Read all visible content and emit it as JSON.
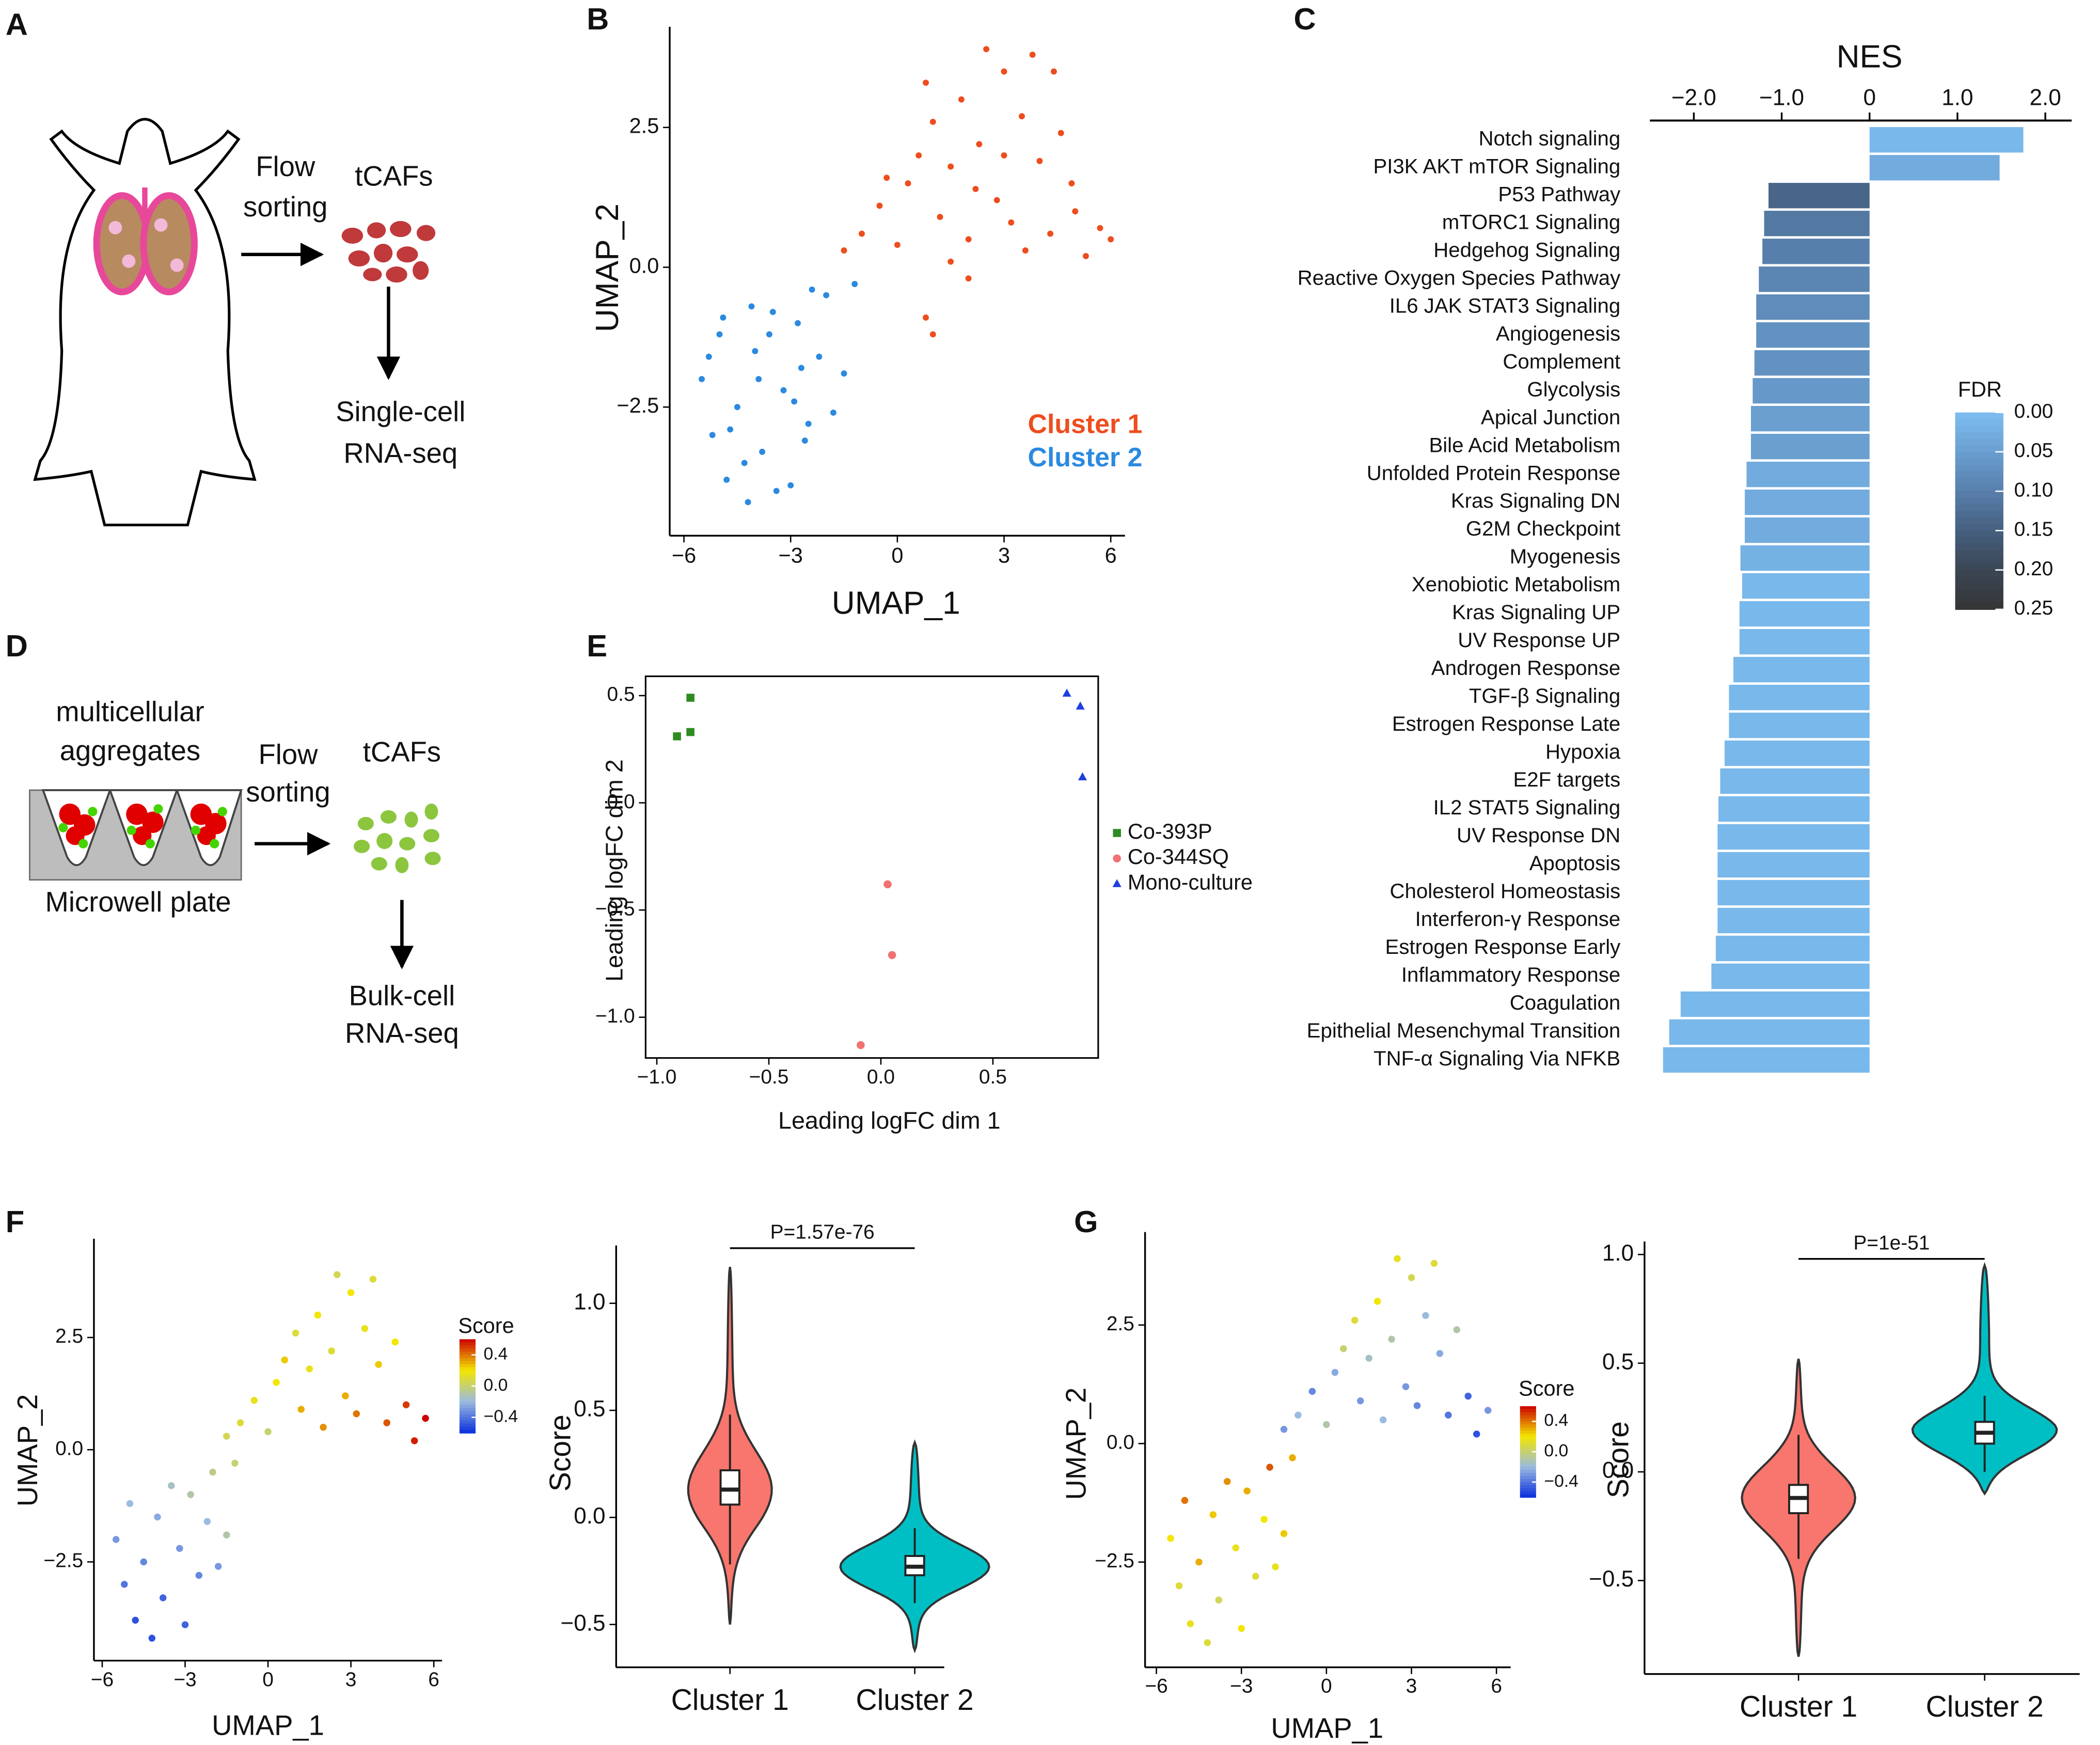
{
  "panel_labels": [
    "A",
    "B",
    "C",
    "D",
    "E",
    "F",
    "G"
  ],
  "diagram_a": {
    "arrow_label": [
      "Flow",
      "sorting"
    ],
    "cells": "tCAFs",
    "assay": [
      "Single-cell",
      "RNA-seq"
    ]
  },
  "diagram_d": {
    "aggregates": [
      "multicellular",
      "aggregates"
    ],
    "arrow_label": [
      "Flow",
      "sorting"
    ],
    "cells": "tCAFs",
    "plate": "Microwell plate",
    "assay": [
      "Bulk-cell",
      "RNA-seq"
    ]
  },
  "chart_data": [
    {
      "type": "scatter",
      "xlabel": "UMAP_1",
      "ylabel": "UMAP_2",
      "xlim": [
        -6.4,
        6.4
      ],
      "ylim": [
        -4.8,
        4.3
      ],
      "xticks": [
        {
          "value": -6,
          "label": "−6"
        },
        {
          "value": -3,
          "label": "−3"
        },
        0,
        3,
        6
      ],
      "yticks": [
        {
          "value": -2.5,
          "label": "−2.5"
        },
        {
          "value": 0,
          "label": "0.0"
        },
        2.5
      ],
      "series": [
        {
          "name": "Cluster 1",
          "color": "#ee4d1e",
          "x": [
            -1.5,
            -1.0,
            -0.5,
            0.0,
            0.3,
            0.6,
            1.0,
            1.2,
            1.5,
            1.8,
            2.0,
            2.3,
            2.5,
            2.8,
            3.0,
            3.2,
            3.5,
            3.8,
            4.0,
            4.3,
            4.6,
            5.0,
            5.3,
            5.7,
            6.0,
            -0.3,
            0.8,
            1.5,
            2.2,
            3.0,
            3.6,
            4.4,
            4.9,
            2.0,
            0.8,
            1.0
          ],
          "values": [
            0.3,
            0.6,
            1.1,
            0.4,
            1.5,
            2.0,
            2.6,
            0.9,
            1.8,
            3.0,
            0.5,
            2.2,
            3.9,
            1.2,
            3.5,
            0.8,
            2.7,
            3.8,
            1.9,
            0.6,
            2.4,
            1.0,
            0.2,
            0.7,
            0.5,
            1.6,
            3.3,
            0.1,
            1.4,
            2.0,
            0.3,
            3.5,
            1.5,
            -0.2,
            -0.9,
            -1.2
          ]
        },
        {
          "name": "Cluster 2",
          "color": "#2a8ae0",
          "x": [
            -5.5,
            -5.2,
            -5.0,
            -4.8,
            -4.5,
            -4.2,
            -4.0,
            -3.8,
            -3.5,
            -3.2,
            -3.0,
            -2.8,
            -2.5,
            -2.2,
            -2.0,
            -1.8,
            -1.5,
            -1.2,
            -5.3,
            -4.7,
            -4.3,
            -3.9,
            -3.4,
            -2.9,
            -2.6,
            -4.9,
            -4.1,
            -3.6,
            -2.4,
            -2.7
          ],
          "values": [
            -2.0,
            -3.0,
            -1.2,
            -3.8,
            -2.5,
            -4.2,
            -1.5,
            -3.3,
            -0.8,
            -2.2,
            -3.9,
            -1.0,
            -2.8,
            -1.6,
            -0.5,
            -2.6,
            -1.9,
            -0.3,
            -1.6,
            -2.9,
            -3.5,
            -2.0,
            -4.0,
            -2.4,
            -3.1,
            -0.9,
            -0.7,
            -1.2,
            -0.4,
            -1.8
          ]
        }
      ]
    },
    {
      "type": "barh",
      "xlabel": "NES",
      "xlim": [
        -2.5,
        2.3
      ],
      "xticks": [
        {
          "value": -2,
          "label": "−2.0"
        },
        {
          "value": -1,
          "label": "−1.0"
        },
        0,
        {
          "value": 1,
          "label": "1.0"
        },
        {
          "value": 2,
          "label": "2.0"
        }
      ],
      "categories": [
        "Notch signaling",
        "PI3K AKT mTOR Signaling",
        "P53 Pathway",
        "mTORC1 Signaling",
        "Hedgehog Signaling",
        "Reactive Oxygen Species Pathway",
        "IL6 JAK STAT3 Signaling",
        "Angiogenesis",
        "Complement",
        "Glycolysis",
        "Apical Junction",
        "Bile Acid Metabolism",
        "Unfolded Protein Response",
        "Kras Signaling DN",
        "G2M Checkpoint",
        "Myogenesis",
        "Xenobiotic Metabolism",
        "Kras Signaling UP",
        "UV Response UP",
        "Androgen Response",
        "TGF-β Signaling",
        "Estrogen Response Late",
        "Hypoxia",
        "E2F targets",
        "IL2 STAT5 Signaling",
        "UV Response DN",
        "Apoptosis",
        "Cholesterol Homeostasis",
        "Interferon-γ Response",
        "Estrogen Response Early",
        "Inflammatory Response",
        "Coagulation",
        "Epithelial Mesenchymal Transition",
        "TNF-α Signaling Via NFKB"
      ],
      "values": [
        1.75,
        1.48,
        -1.15,
        -1.2,
        -1.22,
        -1.26,
        -1.29,
        -1.29,
        -1.31,
        -1.33,
        -1.35,
        -1.35,
        -1.4,
        -1.42,
        -1.42,
        -1.47,
        -1.45,
        -1.48,
        -1.48,
        -1.55,
        -1.6,
        -1.6,
        -1.65,
        -1.7,
        -1.72,
        -1.73,
        -1.73,
        -1.73,
        -1.73,
        -1.75,
        -1.8,
        -2.15,
        -2.28,
        -2.35
      ],
      "fdr": [
        0.01,
        0.03,
        0.14,
        0.11,
        0.1,
        0.09,
        0.08,
        0.07,
        0.07,
        0.06,
        0.05,
        0.05,
        0.03,
        0.03,
        0.03,
        0.02,
        0.01,
        0.01,
        0.01,
        0.01,
        0.01,
        0.01,
        0.01,
        0.01,
        0.01,
        0.01,
        0.01,
        0.01,
        0.01,
        0.01,
        0.01,
        0.01,
        0.01,
        0.01
      ],
      "legend": {
        "title": "FDR",
        "ticks": [
          {
            "value": 0,
            "label": "0.00"
          },
          {
            "value": 0.05,
            "label": "0.05"
          },
          {
            "value": 0.1,
            "label": "0.10"
          },
          {
            "value": 0.15,
            "label": "0.15"
          },
          {
            "value": 0.2,
            "label": "0.20"
          },
          {
            "value": 0.25,
            "label": "0.25"
          }
        ],
        "colors": [
          "#7dbef2",
          "#6a9fd0",
          "#577fab",
          "#455f7f",
          "#3a4653",
          "#353535"
        ]
      }
    },
    {
      "type": "scatter",
      "xlabel": "Leading logFC dim 1",
      "ylabel": "Leading logFC dim 2",
      "xlim": [
        -1.05,
        0.97
      ],
      "ylim": [
        -1.19,
        0.59
      ],
      "xticks": [
        {
          "value": -1,
          "label": "−1.0"
        },
        {
          "value": -0.5,
          "label": "−0.5"
        },
        {
          "value": 0,
          "label": "0.0"
        },
        0.5
      ],
      "yticks": [
        {
          "value": -1,
          "label": "−1.0"
        },
        {
          "value": -0.5,
          "label": "−0.5"
        },
        {
          "value": 0,
          "label": "0.0"
        },
        0.5
      ],
      "series": [
        {
          "name": "Co-393P",
          "color": "#2e8b22",
          "marker": "square",
          "x": [
            -0.85,
            -0.85,
            -0.91
          ],
          "values": [
            0.49,
            0.33,
            0.31
          ]
        },
        {
          "name": "Co-344SQ",
          "color": "#f07272",
          "marker": "circle",
          "x": [
            0.03,
            0.05,
            -0.09
          ],
          "values": [
            -0.38,
            -0.71,
            -1.13
          ]
        },
        {
          "name": "Mono-culture",
          "color": "#1f3fe0",
          "marker": "triangle",
          "x": [
            0.83,
            0.89,
            0.9
          ],
          "values": [
            0.51,
            0.45,
            0.12
          ]
        }
      ]
    },
    {
      "type": "scatter",
      "xlabel": "UMAP_1",
      "ylabel": "UMAP_2",
      "xlim": [
        -6.3,
        6.3
      ],
      "ylim": [
        -4.7,
        4.7
      ],
      "xticks": [
        {
          "value": -6,
          "label": "−6"
        },
        {
          "value": -3,
          "label": "−3"
        },
        0,
        3,
        6
      ],
      "yticks": [
        {
          "value": -2.5,
          "label": "−2.5"
        },
        {
          "value": 0,
          "label": "0.0"
        },
        2.5
      ],
      "colorbar_title": "Score",
      "clim": [
        -0.6,
        0.6
      ],
      "colors": [
        "#0a2fdc",
        "#9bbbe0",
        "#f3e600",
        "#cc0000"
      ],
      "cticks": [
        {
          "value": 0.4,
          "label": "0.4"
        },
        {
          "value": 0,
          "label": "0.0"
        },
        {
          "value": -0.4,
          "label": "−0.4"
        }
      ],
      "series": [
        {
          "x": [
            -1.5,
            -1.0,
            -0.5,
            0.0,
            0.3,
            0.6,
            1.0,
            1.2,
            1.5,
            1.8,
            2.0,
            2.3,
            2.5,
            2.8,
            3.0,
            3.2,
            3.5,
            3.8,
            4.0,
            4.3,
            4.6,
            5.0,
            5.3,
            5.7,
            -5.5,
            -5.2,
            -5.0,
            -4.8,
            -4.5,
            -4.2,
            -4.0,
            -3.8,
            -3.5,
            -3.2,
            -3.0,
            -2.8,
            -2.5,
            -2.2,
            -2.0,
            -1.8,
            -1.5,
            -1.2
          ],
          "values": [
            0.3,
            0.6,
            1.1,
            0.4,
            1.5,
            2.0,
            2.6,
            0.9,
            1.8,
            3.0,
            0.5,
            2.2,
            3.9,
            1.2,
            3.5,
            0.8,
            2.7,
            3.8,
            1.9,
            0.6,
            2.4,
            1.0,
            0.2,
            0.7,
            -2.0,
            -3.0,
            -1.2,
            -3.8,
            -2.5,
            -4.2,
            -1.5,
            -3.3,
            -0.8,
            -2.2,
            -3.9,
            -1.0,
            -2.8,
            -1.6,
            -0.5,
            -2.6,
            -1.9,
            -0.3
          ],
          "scores": [
            0.05,
            0.1,
            0.15,
            0.0,
            0.2,
            0.25,
            0.1,
            0.3,
            0.15,
            0.2,
            0.35,
            0.1,
            0.05,
            0.3,
            0.2,
            0.4,
            0.15,
            0.1,
            0.25,
            0.45,
            0.2,
            0.5,
            0.55,
            0.6,
            -0.3,
            -0.4,
            -0.2,
            -0.5,
            -0.35,
            -0.5,
            -0.25,
            -0.45,
            -0.15,
            -0.3,
            -0.45,
            -0.1,
            -0.35,
            -0.2,
            -0.05,
            -0.3,
            -0.1,
            0.0
          ]
        }
      ]
    },
    {
      "type": "violin",
      "ylabel": "Score",
      "annotation": "P=1.57e-76",
      "ylim": [
        -0.7,
        1.27
      ],
      "yticks": [
        {
          "value": -0.5,
          "label": "−0.5"
        },
        {
          "value": 0,
          "label": "0.0"
        },
        0.5,
        {
          "value": 1,
          "label": "1.0"
        }
      ],
      "categories": [
        "Cluster 1",
        "Cluster 2"
      ],
      "violins": [
        {
          "color": "#f8766d",
          "min": -0.5,
          "q1": 0.06,
          "median": 0.13,
          "q3": 0.22,
          "max": 1.17,
          "whiskers": [
            -0.22,
            0.48
          ]
        },
        {
          "color": "#00bfc4",
          "min": -0.62,
          "q1": -0.27,
          "median": -0.23,
          "q3": -0.18,
          "max": 0.35,
          "whiskers": [
            -0.4,
            -0.05
          ]
        }
      ]
    },
    {
      "type": "scatter",
      "xlabel": "UMAP_1",
      "ylabel": "UMAP_2",
      "xlim": [
        -6.4,
        6.5
      ],
      "ylim": [
        -4.72,
        4.46
      ],
      "xticks": [
        {
          "value": -6,
          "label": "−6"
        },
        {
          "value": -3,
          "label": "−3"
        },
        0,
        3,
        6
      ],
      "yticks": [
        {
          "value": -2.5,
          "label": "−2.5"
        },
        {
          "value": 0,
          "label": "0.0"
        },
        2.5
      ],
      "colorbar_title": "Score",
      "clim": [
        -0.6,
        0.6
      ],
      "colors": [
        "#0a2fdc",
        "#9bbbe0",
        "#f3e600",
        "#cc0000"
      ],
      "cticks": [
        {
          "value": 0.4,
          "label": "0.4"
        },
        {
          "value": 0,
          "label": "0.0"
        },
        {
          "value": -0.4,
          "label": "−0.4"
        }
      ],
      "series": [
        {
          "x": [
            -1.5,
            -1.0,
            -0.5,
            0.0,
            0.3,
            0.6,
            1.0,
            1.2,
            1.5,
            1.8,
            2.0,
            2.3,
            2.5,
            2.8,
            3.0,
            3.2,
            3.5,
            3.8,
            4.0,
            4.3,
            4.6,
            5.0,
            5.3,
            5.7,
            -5.5,
            -5.2,
            -5.0,
            -4.8,
            -4.5,
            -4.2,
            -4.0,
            -3.8,
            -3.5,
            -3.2,
            -3.0,
            -2.8,
            -2.5,
            -2.2,
            -2.0,
            -1.8,
            -1.5,
            -1.2
          ],
          "values": [
            0.3,
            0.6,
            1.1,
            0.4,
            1.5,
            2.0,
            2.6,
            0.9,
            1.8,
            3.0,
            0.5,
            2.2,
            3.9,
            1.2,
            3.5,
            0.8,
            2.7,
            3.8,
            1.9,
            0.6,
            2.4,
            1.0,
            0.2,
            0.7,
            -2.0,
            -3.0,
            -1.2,
            -3.8,
            -2.5,
            -4.2,
            -1.5,
            -3.3,
            -0.8,
            -2.2,
            -3.9,
            -1.0,
            -2.8,
            -1.6,
            -0.5,
            -2.6,
            -1.9,
            -0.3
          ],
          "scores": [
            -0.3,
            -0.2,
            -0.35,
            -0.1,
            -0.25,
            0.0,
            0.1,
            -0.3,
            -0.15,
            0.2,
            -0.2,
            -0.1,
            0.15,
            -0.3,
            0.05,
            -0.35,
            -0.2,
            0.1,
            -0.25,
            -0.4,
            -0.1,
            -0.45,
            -0.5,
            -0.3,
            0.2,
            0.1,
            0.4,
            0.15,
            0.3,
            0.1,
            0.25,
            0.05,
            0.35,
            0.15,
            0.2,
            0.3,
            0.1,
            0.2,
            0.45,
            0.15,
            0.25,
            0.3
          ]
        }
      ]
    },
    {
      "type": "violin",
      "ylabel": "Score",
      "annotation": "P=1e-51",
      "ylim": [
        -0.93,
        1.06
      ],
      "yticks": [
        {
          "value": -0.5,
          "label": "−0.5"
        },
        {
          "value": 0,
          "label": "0.0"
        },
        0.5,
        {
          "value": 1,
          "label": "1.0"
        }
      ],
      "categories": [
        "Cluster 1",
        "Cluster 2"
      ],
      "violins": [
        {
          "color": "#f8766d",
          "min": -0.85,
          "q1": -0.19,
          "median": -0.12,
          "q3": -0.06,
          "max": 0.52,
          "whiskers": [
            -0.4,
            0.17
          ]
        },
        {
          "color": "#00bfc4",
          "min": -0.1,
          "q1": 0.13,
          "median": 0.18,
          "q3": 0.23,
          "max": 0.95,
          "whiskers": [
            0.0,
            0.35
          ]
        }
      ]
    }
  ]
}
